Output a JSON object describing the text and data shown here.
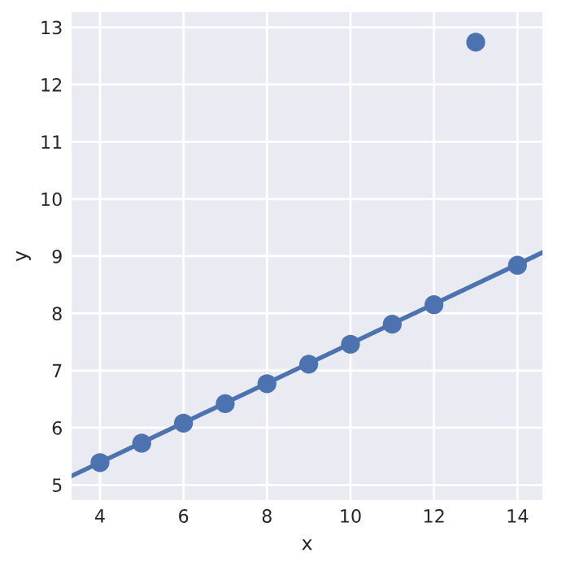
{
  "chart_data": {
    "type": "scatter",
    "xlabel": "x",
    "ylabel": "y",
    "series": [
      {
        "color": "#4c72b0",
        "marker": "circle",
        "x": [
          4,
          5,
          6,
          7,
          8,
          9,
          10,
          11,
          12,
          13,
          14
        ],
        "values": [
          5.39,
          5.73,
          6.08,
          6.42,
          6.77,
          7.11,
          7.46,
          7.81,
          8.15,
          12.74,
          8.84
        ]
      },
      {
        "type": "line",
        "color": "#4c72b0",
        "line_style": "solid",
        "x": [
          3.3,
          14.62
        ],
        "values": [
          5.15,
          9.07
        ]
      }
    ],
    "xlim": [
      3.3,
      14.62
    ],
    "ylim": [
      4.72,
      13.28
    ],
    "xticks": [
      4,
      6,
      8,
      10,
      12,
      14
    ],
    "yticks": [
      5,
      6,
      7,
      8,
      9,
      10,
      11,
      12,
      13
    ],
    "grid": true
  }
}
